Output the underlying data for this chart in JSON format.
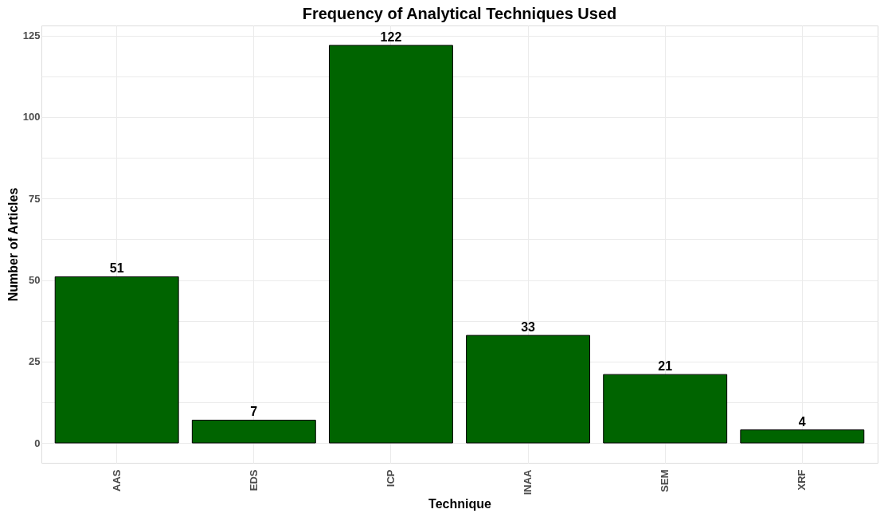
{
  "chart_data": {
    "type": "bar",
    "title": "Frequency of Analytical Techniques Used",
    "xlabel": "Technique",
    "ylabel": "Number of Articles",
    "categories": [
      "AAS",
      "EDS",
      "ICP",
      "INAA",
      "SEM",
      "XRF"
    ],
    "values": [
      51,
      7,
      122,
      33,
      21,
      4
    ],
    "color": "#006400",
    "ylim": [
      -6.1,
      128.1
    ],
    "yticks": [
      0,
      {
        "value": 12.5,
        "label": null
      },
      25,
      {
        "value": 37.5,
        "label": null
      },
      50,
      {
        "value": 62.5,
        "label": null
      },
      75,
      {
        "value": 87.5,
        "label": null
      },
      100,
      {
        "value": 112.5,
        "label": null
      },
      125
    ],
    "grid": true,
    "data_labels": true
  }
}
